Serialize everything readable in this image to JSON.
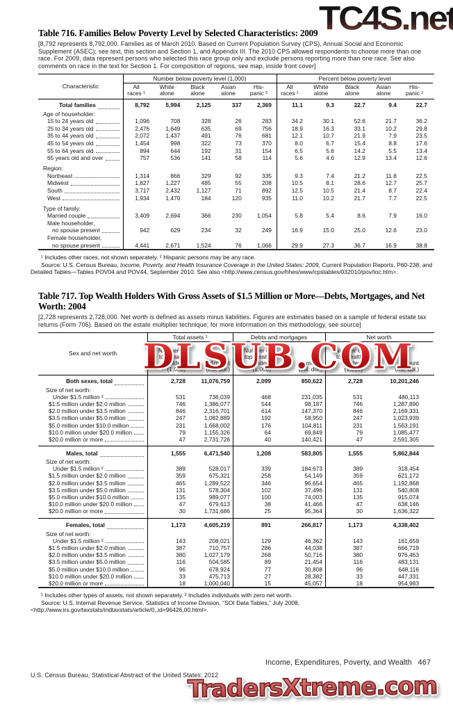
{
  "watermarks": {
    "top": "TC4S.net",
    "middle": "DLSUB.COM",
    "bottom": "TradersXtreme.com",
    "red": "#c41717"
  },
  "footer": {
    "running_head": "Income, Expenditures, Poverty, and Wealth",
    "page_number": "467",
    "source_line": "U.S. Census Bureau, Statistical Abstract of the United States: 2012"
  },
  "table716": {
    "title": "Table 716. Families Below Poverty Level by Selected Characteristics: 2009",
    "note": "[8,792 represents 8,792,000. Families as of March 2010. Based on Current Population Survey (CPS), Annual Social and Economic Supplement (ASEC); see text, this section and Section 1, and Appendix III. The 2010 CPS allowed respondents to choose more than one race. For 2009, data represent persons who selected this race group only and exclude persons reporting more than one race. See also comments on race in the text for Section 1. For composition of regions, see map, inside front cover]",
    "header": {
      "stub": "Characteristic",
      "groups": [
        "Number below poverty level (1,000)",
        "Percent below poverty level"
      ],
      "subcols": [
        [
          "All",
          "races ¹"
        ],
        [
          "White",
          "alone"
        ],
        [
          "Black",
          "alone"
        ],
        [
          "Asian",
          "alone"
        ],
        [
          "His-",
          "panic ²"
        ]
      ]
    },
    "rows": [
      {
        "t": "total",
        "l": "Total families",
        "v": [
          "8,792",
          "5,994",
          "2,125",
          "337",
          "2,369",
          "11.1",
          "9.3",
          "22.7",
          "9.4",
          "22.7"
        ]
      },
      {
        "t": "sect",
        "l": "Age of householder:"
      },
      {
        "t": "data",
        "l": "15 to 24 years old",
        "v": [
          "1,096",
          "708",
          "328",
          "26",
          "283",
          "34.2",
          "30.1",
          "52.6",
          "21.7",
          "36.2"
        ]
      },
      {
        "t": "data",
        "l": "25 to 34 years old",
        "v": [
          "2,476",
          "1,649",
          "635",
          "69",
          "756",
          "18.9",
          "16.3",
          "33.1",
          "10.2",
          "29.8"
        ]
      },
      {
        "t": "data",
        "l": "35 to 44 years old",
        "v": [
          "2,072",
          "1,437",
          "491",
          "76",
          "681",
          "12.1",
          "10.7",
          "21.9",
          "7.9",
          "23.5"
        ]
      },
      {
        "t": "data",
        "l": "45 to 54 years old",
        "v": [
          "1,454",
          "998",
          "322",
          "73",
          "370",
          "8.0",
          "6.7",
          "15.4",
          "8.8",
          "17.6"
        ]
      },
      {
        "t": "data",
        "l": "55 to 64 years old",
        "v": [
          "894",
          "644",
          "192",
          "31",
          "154",
          "6.5",
          "5.6",
          "14.2",
          "5.5",
          "13.4"
        ]
      },
      {
        "t": "data",
        "l": "65 years old and over",
        "v": [
          "757",
          "536",
          "141",
          "58",
          "114",
          "5.6",
          "4.6",
          "12.9",
          "13.4",
          "12.6"
        ]
      },
      {
        "t": "gap"
      },
      {
        "t": "sect",
        "l": "Region:"
      },
      {
        "t": "data",
        "l": "Northeast",
        "v": [
          "1,314",
          "866",
          "329",
          "92",
          "335",
          "9.3",
          "7.4",
          "21.2",
          "11.8",
          "22.5"
        ]
      },
      {
        "t": "data",
        "l": "Midwest",
        "v": [
          "1,827",
          "1,227",
          "485",
          "55",
          "208",
          "10.5",
          "8.1",
          "28.6",
          "12.7",
          "25.7"
        ]
      },
      {
        "t": "data",
        "l": "South",
        "v": [
          "3,717",
          "2,432",
          "1,127",
          "71",
          "892",
          "12.5",
          "10.5",
          "21.4",
          "8.7",
          "22.4"
        ]
      },
      {
        "t": "data",
        "l": "West",
        "v": [
          "1,934",
          "1,470",
          "184",
          "120",
          "935",
          "11.0",
          "10.2",
          "21.7",
          "7.7",
          "22.5"
        ]
      },
      {
        "t": "gap"
      },
      {
        "t": "sect",
        "l": "Type of family:"
      },
      {
        "t": "data",
        "l": "Married couple",
        "v": [
          "3,409",
          "2,694",
          "366",
          "230",
          "1,054",
          "5.8",
          "5.4",
          "8.6",
          "7.9",
          "16.0"
        ]
      },
      {
        "t": "lbl",
        "l": "Male householder,"
      },
      {
        "t": "data2",
        "l": "no spouse present",
        "v": [
          "942",
          "629",
          "234",
          "32",
          "249",
          "16.9",
          "15.0",
          "25.0",
          "12.6",
          "23.0"
        ]
      },
      {
        "t": "lbl",
        "l": "Female householder,"
      },
      {
        "t": "data2",
        "l": "no spouse present",
        "v": [
          "4,441",
          "2,671",
          "1,524",
          "76",
          "1,066",
          "29.9",
          "27.3",
          "36.7",
          "16.9",
          "38.8"
        ]
      }
    ],
    "footnotes": "¹ Includes other races, not shown separately. ² Hispanic persons may be any race.",
    "source_prefix": "Source: U.S. Census Bureau, ",
    "source_italic": "Income, Poverty, and Health Insurance Coverage in the United States: 2009",
    "source_suffix": ", Current Population Reports, P60-238, and Detailed Tables—Tables POV04 and POV44, September 2010. See also <http://www.census.gov/hhes​/www/cpstables/032010/pov/toc.htm>."
  },
  "table717": {
    "title": "Table 717. Top Wealth Holders With Gross Assets of $1.5 Million or More—Debts, Mortgages, and Net Worth: 2004",
    "note": "[2,728 represents 2,728,000. Net worth is defined as assets minus liabilities. Figures are estimates based on a sample of federal estate tax returns (Form 706). Based on the estate multiplier technique; for more information on this methodology, see source]",
    "header": {
      "stub": "Sex and net worth",
      "groups": [
        "Total assets ¹",
        "Debts and mortgages",
        "Net worth"
      ],
      "sub_num": [
        "Number of",
        "top wealth",
        "holders",
        "(1,000)"
      ],
      "sub_amt": [
        "Amount",
        "(mil. dol.)"
      ]
    },
    "rows": [
      {
        "t": "total",
        "l": "Both sexes, total",
        "v": [
          "2,728",
          "11,076,759",
          "2,099",
          "850,622",
          "2,728",
          "10,201,246"
        ]
      },
      {
        "t": "sect",
        "l": "Size of net worth:"
      },
      {
        "t": "dataU",
        "l": "Under $1.5 million ²",
        "v": [
          "531",
          "736,039",
          "468",
          "231,035",
          "531",
          "480,113"
        ]
      },
      {
        "t": "data",
        "l": "$1.5 million under $2.0 million",
        "v": [
          "746",
          "1,386,077",
          "544",
          "98,187",
          "746",
          "1,287,890"
        ]
      },
      {
        "t": "data",
        "l": "$2.0 million under $3.5 million",
        "v": [
          "846",
          "2,316,701",
          "614",
          "147,370",
          "846",
          "2,169,331"
        ]
      },
      {
        "t": "data",
        "l": "$3.5 million under $5.0 million",
        "v": [
          "247",
          "1,082,889",
          "192",
          "58,950",
          "247",
          "1,023,939"
        ]
      },
      {
        "t": "data",
        "l": "$5.0 million under $10.0 million",
        "v": [
          "231",
          "1,668,002",
          "176",
          "104,811",
          "231",
          "1,563,191"
        ]
      },
      {
        "t": "data",
        "l": "$10.0 million under $20.0 million",
        "v": [
          "79",
          "1,155,326",
          "64",
          "69,849",
          "79",
          "1,085,477"
        ]
      },
      {
        "t": "data",
        "l": "$20.0 million or more",
        "v": [
          "47",
          "2,731,726",
          "40",
          "140,421",
          "47",
          "2,591,305"
        ]
      },
      {
        "t": "rule"
      },
      {
        "t": "total",
        "l": "Males, total",
        "v": [
          "1,555",
          "6,471,540",
          "1,208",
          "583,805",
          "1,555",
          "5,862,844"
        ]
      },
      {
        "t": "sect",
        "l": "Size of net worth:"
      },
      {
        "t": "dataU",
        "l": "Under $1.5 million ²",
        "v": [
          "389",
          "528,017",
          "339",
          "184,673",
          "389",
          "318,454"
        ]
      },
      {
        "t": "data",
        "l": "$1.5 million under $2.0 million",
        "v": [
          "359",
          "675,321",
          "258",
          "54,149",
          "359",
          "621,172"
        ]
      },
      {
        "t": "data",
        "l": "$2.0 million under $3.5 million",
        "v": [
          "465",
          "1,289,522",
          "346",
          "96,654",
          "465",
          "1,192,868"
        ]
      },
      {
        "t": "data",
        "l": "$3.5 million under $5.0 million",
        "v": [
          "131",
          "578,304",
          "102",
          "37,496",
          "131",
          "540,808"
        ]
      },
      {
        "t": "data",
        "l": "$5.0 million under $10.0 million",
        "v": [
          "135",
          "989,077",
          "100",
          "74,003",
          "135",
          "915,074"
        ]
      },
      {
        "t": "data",
        "l": "$10.0 million under $20.0 million",
        "v": [
          "47",
          "679,613",
          "38",
          "41,466",
          "47",
          "638,146"
        ]
      },
      {
        "t": "data",
        "l": "$20.0 million or more",
        "v": [
          "30",
          "1,731,686",
          "25",
          "95,364",
          "30",
          "1,636,322"
        ]
      },
      {
        "t": "rule"
      },
      {
        "t": "total",
        "l": "Females, total",
        "v": [
          "1,173",
          "4,605,219",
          "891",
          "266,817",
          "1,173",
          "4,338,402"
        ]
      },
      {
        "t": "sect",
        "l": "Size of net worth:"
      },
      {
        "t": "dataU",
        "l": "Under $1.5 million ²",
        "v": [
          "143",
          "208,021",
          "129",
          "46,362",
          "143",
          "161,659"
        ]
      },
      {
        "t": "data",
        "l": "$1.5 million under $2.0 million",
        "v": [
          "387",
          "710,757",
          "286",
          "44,038",
          "387",
          "666,719"
        ]
      },
      {
        "t": "data",
        "l": "$2.0 million under $3.5 million",
        "v": [
          "380",
          "1,027,179",
          "268",
          "50,716",
          "380",
          "976,463"
        ]
      },
      {
        "t": "data",
        "l": "$3.5 million under $5.0 million",
        "v": [
          "116",
          "504,585",
          "89",
          "21,454",
          "116",
          "483,131"
        ]
      },
      {
        "t": "data",
        "l": "$5.0 million under $10.0 million",
        "v": [
          "96",
          "678,924",
          "77",
          "30,808",
          "96",
          "648,116"
        ]
      },
      {
        "t": "data",
        "l": "$10.0 million under $20.0 million",
        "v": [
          "33",
          "475,713",
          "27",
          "28,382",
          "33",
          "447,331"
        ]
      },
      {
        "t": "data",
        "l": "$20.0 million or more",
        "v": [
          "18",
          "1,000,040",
          "15",
          "45,057",
          "18",
          "954,983"
        ]
      }
    ],
    "footnotes": "¹ Includes other types of assets, not shown separately. ² Includes individuals with zero net worth.",
    "source": "Source: U.S. Internal Revenue Service, Statistics of Income Division, “SOI Data Tables,” July 2008, <http://www.irs.gov/taxstats/indtaxstats/article/0,,id=96426,00.html>."
  }
}
